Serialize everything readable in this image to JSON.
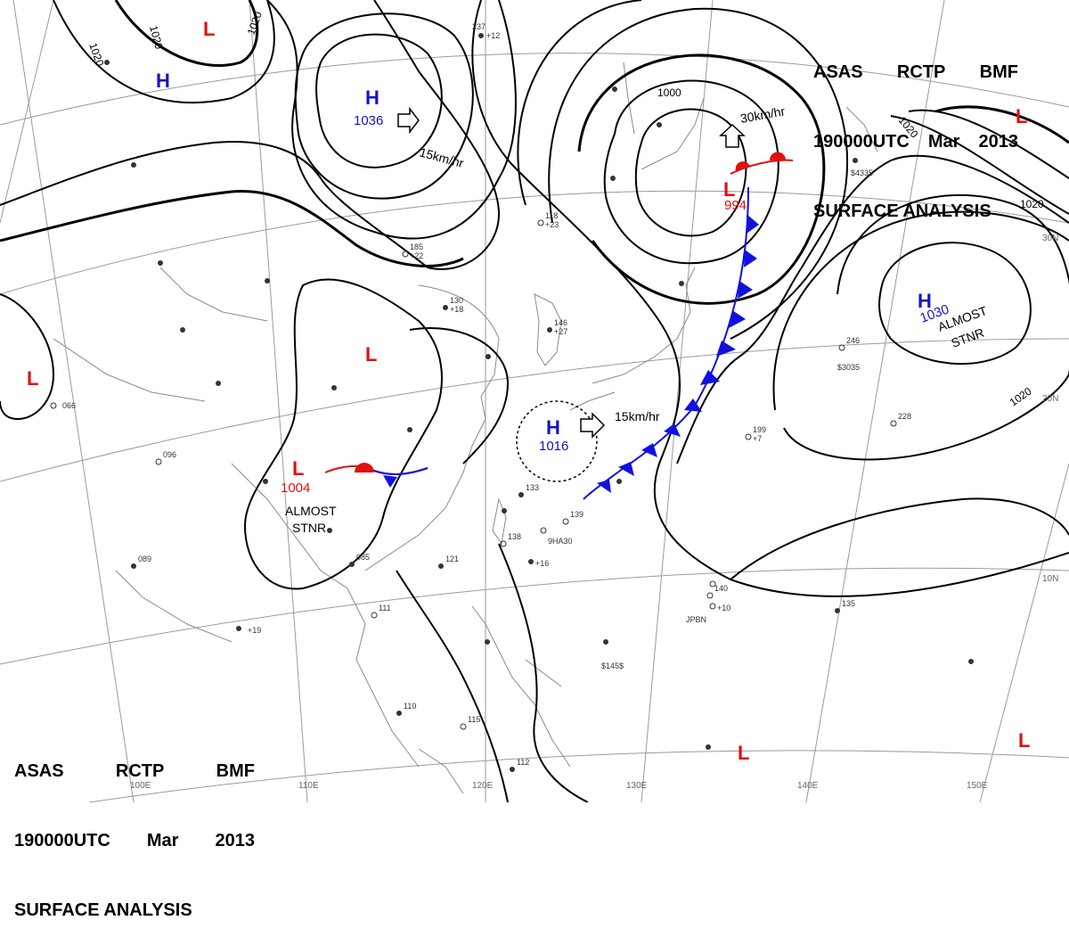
{
  "header": {
    "agency_codes": [
      "ASAS",
      "RCTP",
      "BMF"
    ],
    "time": "190000UTC",
    "month": "Mar",
    "year": "2013",
    "product": "SURFACE ANALYSIS"
  },
  "pressure_centers": [
    {
      "id": "h-mongolia",
      "type": "H",
      "value": "1036",
      "color": "#1414c8"
    },
    {
      "id": "h-siberia",
      "type": "H",
      "value": "",
      "color": "#1414c8"
    },
    {
      "id": "h-pacific",
      "type": "H",
      "value": "1030",
      "color": "#1414c8"
    },
    {
      "id": "h-east-china-sea",
      "type": "H",
      "value": "1016",
      "color": "#1414c8"
    },
    {
      "id": "l-japan",
      "type": "L",
      "value": "994",
      "color": "#e01010"
    },
    {
      "id": "l-southwest-china",
      "type": "L",
      "value": "1004",
      "color": "#e01010"
    },
    {
      "id": "l-tibet",
      "type": "L",
      "value": "",
      "color": "#e01010"
    },
    {
      "id": "l-north",
      "type": "L",
      "value": "",
      "color": "#e01010"
    },
    {
      "id": "l-west",
      "type": "L",
      "value": "",
      "color": "#e01010"
    },
    {
      "id": "l-northeast",
      "type": "L",
      "value": "",
      "color": "#e01010"
    },
    {
      "id": "l-southeast",
      "type": "L",
      "value": "",
      "color": "#e01010"
    },
    {
      "id": "l-south",
      "type": "L",
      "value": "",
      "color": "#e01010"
    }
  ],
  "movement_labels": {
    "mongolia_high": "15km/hr",
    "japan_low": "30km/hr",
    "east_china_sea_high": "15km/hr"
  },
  "stationary_notes": {
    "pacific_high": [
      "ALMOST",
      "STNR"
    ],
    "china_low": [
      "ALMOST",
      "STNR"
    ]
  },
  "isobar_labels": [
    "1020",
    "1020",
    "1020",
    "1020",
    "1000",
    "1020",
    "1020"
  ],
  "longitude_labels": [
    "100E",
    "110E",
    "120E",
    "130E",
    "140E",
    "150E"
  ],
  "latitude_labels": [
    "30N",
    "20N",
    "10N"
  ],
  "station_samples": [
    "237",
    "+12",
    "185",
    "+22",
    "130",
    "+18",
    "146",
    "+27",
    "118",
    "+23",
    "199",
    "+7",
    "228",
    "246",
    "$3035",
    "$4335",
    "JPBN",
    "9HA30",
    "$145$",
    "066",
    "089",
    "085",
    "096",
    "111",
    "110",
    "115",
    "112",
    "121",
    "133",
    "138",
    "139",
    "140",
    "135",
    "+19",
    "+16",
    "+10"
  ],
  "colors": {
    "isobar": "#000000",
    "grid": "#9a9a9a",
    "coast": "#8a8a8a",
    "high": "#1414c8",
    "low": "#e01010",
    "cold_front": "#1010e0",
    "warm_front": "#e01010",
    "text": "#333333"
  }
}
